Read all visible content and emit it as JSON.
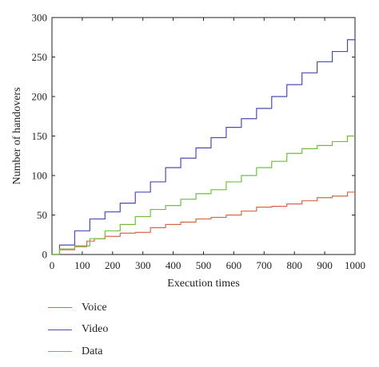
{
  "chart_data": {
    "type": "line",
    "xlabel": "Execution times",
    "ylabel": "Number of handovers",
    "xlim": [
      0,
      1000
    ],
    "ylim": [
      0,
      300
    ],
    "xticks": [
      0,
      100,
      200,
      300,
      400,
      500,
      600,
      700,
      800,
      900,
      1000
    ],
    "yticks": [
      0,
      50,
      100,
      150,
      200,
      250,
      300
    ],
    "grid": false,
    "legend_position": "below",
    "series": [
      {
        "name": "Voice",
        "color": "#d9664a",
        "x": [
          0,
          50,
          100,
          130,
          150,
          200,
          250,
          300,
          350,
          400,
          450,
          500,
          550,
          600,
          650,
          700,
          750,
          800,
          850,
          900,
          950,
          1000
        ],
        "y": [
          0,
          6,
          10,
          17,
          20,
          23,
          27,
          28,
          34,
          38,
          41,
          45,
          47,
          50,
          55,
          60,
          61,
          64,
          68,
          72,
          74,
          79
        ]
      },
      {
        "name": "Video",
        "color": "#4a4db3",
        "x": [
          0,
          50,
          100,
          150,
          200,
          250,
          300,
          350,
          400,
          450,
          500,
          550,
          600,
          650,
          700,
          750,
          800,
          850,
          900,
          950,
          1000
        ],
        "y": [
          0,
          12,
          30,
          45,
          54,
          65,
          79,
          92,
          110,
          122,
          135,
          148,
          161,
          172,
          185,
          200,
          215,
          230,
          244,
          257,
          272
        ]
      },
      {
        "name": "Data",
        "color": "#6fbf3f",
        "x": [
          0,
          50,
          100,
          150,
          200,
          250,
          300,
          350,
          400,
          450,
          500,
          550,
          600,
          650,
          700,
          750,
          800,
          850,
          900,
          950,
          1000
        ],
        "y": [
          0,
          7,
          11,
          20,
          30,
          38,
          48,
          57,
          62,
          70,
          77,
          82,
          92,
          100,
          110,
          118,
          128,
          134,
          138,
          143,
          150
        ]
      }
    ]
  }
}
